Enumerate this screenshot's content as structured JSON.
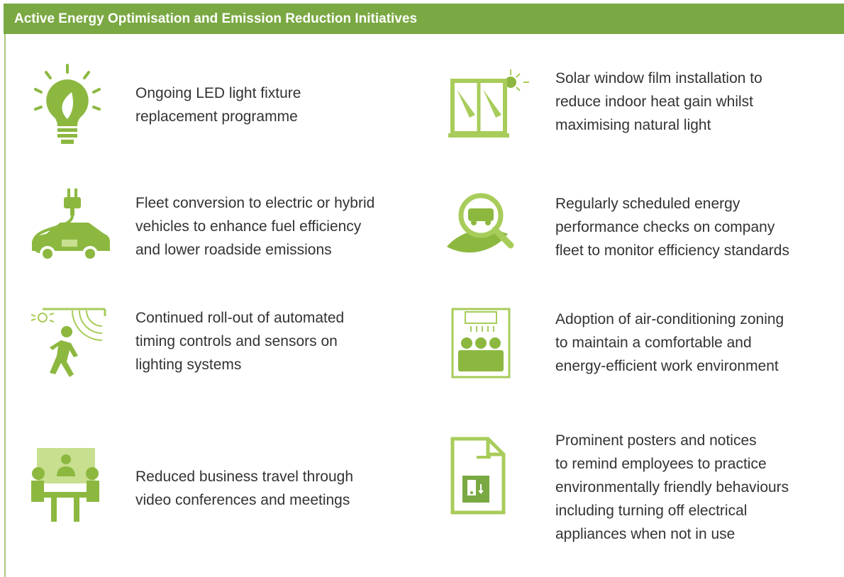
{
  "header": {
    "title": "Active Energy Optimisation and Emission Reduction Initiatives"
  },
  "items": [
    {
      "lines": [
        "Ongoing LED light fixture",
        "replacement programme"
      ]
    },
    {
      "lines": [
        "Solar window film installation to",
        "reduce indoor heat gain whilst",
        "maximising natural light"
      ]
    },
    {
      "lines": [
        "Fleet conversion to electric or hybrid",
        "vehicles to enhance fuel efficiency",
        "and lower roadside emissions"
      ]
    },
    {
      "lines": [
        "Regularly scheduled energy",
        "performance checks on company",
        "fleet to monitor efficiency standards"
      ]
    },
    {
      "lines": [
        "Continued roll-out of automated",
        "timing controls and sensors on",
        "lighting systems"
      ]
    },
    {
      "lines": [
        "Adoption of air-conditioning zoning",
        "to maintain a comfortable and",
        "energy-efficient work environment"
      ]
    },
    {
      "lines": [
        "Reduced business travel through",
        "video conferences and meetings"
      ]
    },
    {
      "lines": [
        "Prominent posters and notices",
        "to remind employees to practice",
        "environmentally friendly behaviours",
        "including turning off electrical",
        "appliances when not in use"
      ]
    }
  ]
}
